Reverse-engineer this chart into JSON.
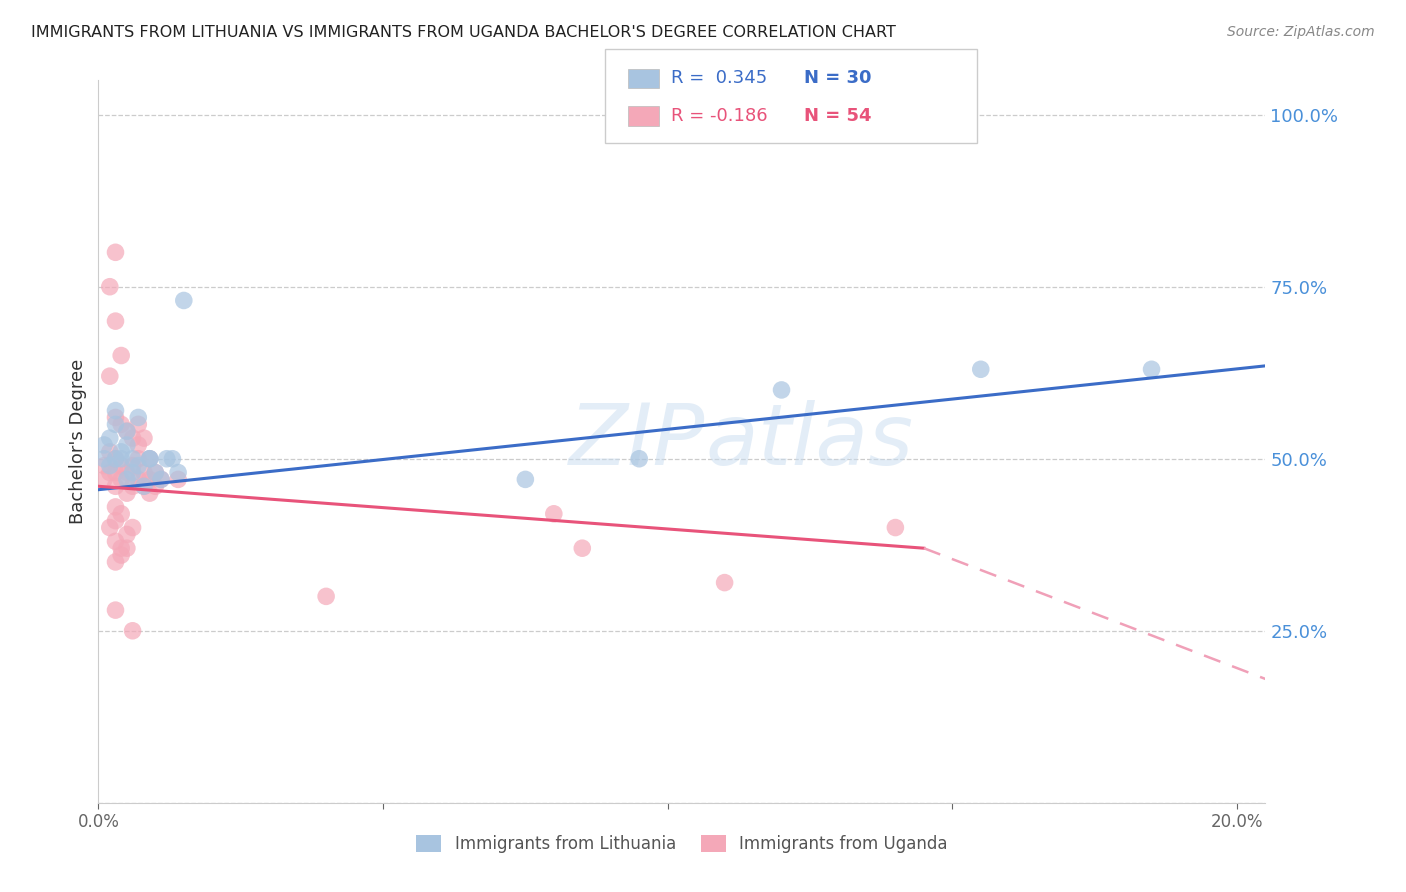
{
  "title": "IMMIGRANTS FROM LITHUANIA VS IMMIGRANTS FROM UGANDA BACHELOR'S DEGREE CORRELATION CHART",
  "source": "Source: ZipAtlas.com",
  "ylabel": "Bachelor's Degree",
  "watermark": "ZIPatlas",
  "blue_color": "#A8C4E0",
  "pink_color": "#F4A8B8",
  "blue_line_color": "#3B6CC7",
  "pink_line_color": "#E8537A",
  "pink_dash_color": "#F0A0B8",
  "right_tick_color": "#4A90D9",
  "xlim": [
    0.0,
    0.205
  ],
  "ylim": [
    0.0,
    1.05
  ],
  "lith_trend": [
    0.0,
    0.205,
    0.455,
    0.635
  ],
  "ugan_solid": [
    0.0,
    0.145,
    0.46,
    0.37
  ],
  "ugan_dash": [
    0.145,
    0.205,
    0.37,
    0.18
  ],
  "lith_x": [
    0.001,
    0.001,
    0.002,
    0.002,
    0.003,
    0.003,
    0.004,
    0.004,
    0.005,
    0.005,
    0.006,
    0.006,
    0.007,
    0.008,
    0.009,
    0.01,
    0.011,
    0.012,
    0.013,
    0.014,
    0.003,
    0.005,
    0.007,
    0.009,
    0.015,
    0.12,
    0.155,
    0.185,
    0.095,
    0.075
  ],
  "lith_y": [
    0.5,
    0.52,
    0.49,
    0.53,
    0.5,
    0.55,
    0.5,
    0.51,
    0.47,
    0.52,
    0.48,
    0.5,
    0.49,
    0.46,
    0.5,
    0.48,
    0.47,
    0.5,
    0.5,
    0.48,
    0.57,
    0.54,
    0.56,
    0.5,
    0.73,
    0.6,
    0.63,
    0.63,
    0.5,
    0.47
  ],
  "ugan_x": [
    0.001,
    0.001,
    0.002,
    0.002,
    0.003,
    0.003,
    0.003,
    0.004,
    0.004,
    0.005,
    0.005,
    0.006,
    0.006,
    0.007,
    0.007,
    0.008,
    0.008,
    0.009,
    0.009,
    0.01,
    0.01,
    0.011,
    0.003,
    0.004,
    0.005,
    0.006,
    0.007,
    0.007,
    0.008,
    0.009,
    0.002,
    0.003,
    0.003,
    0.004,
    0.004,
    0.005,
    0.005,
    0.006,
    0.003,
    0.003,
    0.004,
    0.002,
    0.004,
    0.003,
    0.002,
    0.003,
    0.014,
    0.08,
    0.085,
    0.14,
    0.003,
    0.006,
    0.04,
    0.11
  ],
  "ugan_y": [
    0.49,
    0.47,
    0.51,
    0.48,
    0.5,
    0.48,
    0.46,
    0.49,
    0.47,
    0.45,
    0.48,
    0.46,
    0.49,
    0.47,
    0.5,
    0.46,
    0.48,
    0.47,
    0.45,
    0.46,
    0.48,
    0.47,
    0.56,
    0.55,
    0.54,
    0.53,
    0.55,
    0.52,
    0.53,
    0.5,
    0.4,
    0.38,
    0.35,
    0.37,
    0.36,
    0.39,
    0.37,
    0.4,
    0.43,
    0.41,
    0.42,
    0.62,
    0.65,
    0.7,
    0.75,
    0.8,
    0.47,
    0.42,
    0.37,
    0.4,
    0.28,
    0.25,
    0.3,
    0.32
  ]
}
